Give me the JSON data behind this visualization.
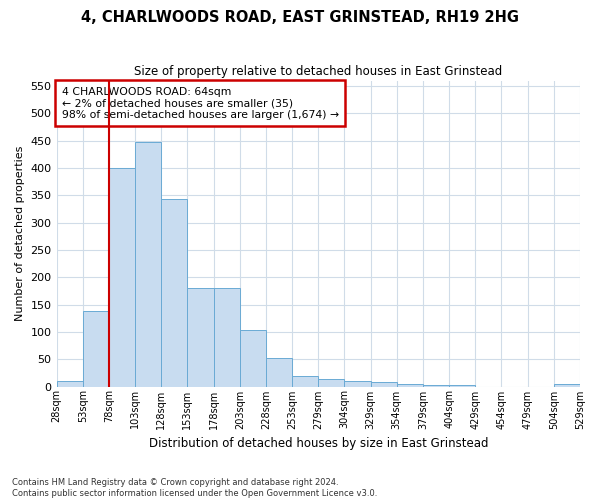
{
  "title": "4, CHARLWOODS ROAD, EAST GRINSTEAD, RH19 2HG",
  "subtitle": "Size of property relative to detached houses in East Grinstead",
  "xlabel": "Distribution of detached houses by size in East Grinstead",
  "ylabel": "Number of detached properties",
  "bar_values": [
    10,
    138,
    400,
    448,
    343,
    180,
    180,
    103,
    52,
    20,
    13,
    10,
    8,
    4,
    3,
    2,
    0,
    0,
    0,
    4
  ],
  "bar_labels": [
    "28sqm",
    "53sqm",
    "78sqm",
    "103sqm",
    "128sqm",
    "153sqm",
    "178sqm",
    "203sqm",
    "228sqm",
    "253sqm",
    "279sqm",
    "304sqm",
    "329sqm",
    "354sqm",
    "379sqm",
    "404sqm",
    "429sqm",
    "454sqm",
    "479sqm",
    "504sqm",
    "529sqm"
  ],
  "bar_color": "#c8dcf0",
  "bar_edge_color": "#6aaad4",
  "vline_x": 1.5,
  "vline_color": "#cc0000",
  "ylim": [
    0,
    560
  ],
  "yticks": [
    0,
    50,
    100,
    150,
    200,
    250,
    300,
    350,
    400,
    450,
    500,
    550
  ],
  "annotation_text": "4 CHARLWOODS ROAD: 64sqm\n← 2% of detached houses are smaller (35)\n98% of semi-detached houses are larger (1,674) →",
  "annotation_box_color": "#ffffff",
  "annotation_box_edge_color": "#cc0000",
  "footnote": "Contains HM Land Registry data © Crown copyright and database right 2024.\nContains public sector information licensed under the Open Government Licence v3.0.",
  "background_color": "#ffffff",
  "grid_color": "#d0dce8"
}
